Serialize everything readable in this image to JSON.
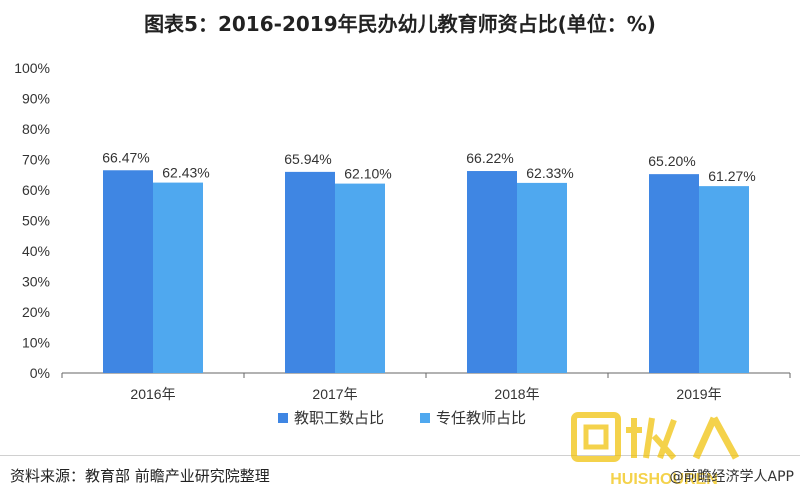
{
  "chart_data": {
    "type": "bar",
    "title": "图表5：2016-2019年民办幼儿教育师资占比(单位：%)",
    "categories": [
      "2016年",
      "2017年",
      "2018年",
      "2019年"
    ],
    "series": [
      {
        "name": "教职工数占比",
        "values": [
          66.47,
          65.94,
          66.22,
          65.2
        ],
        "labels": [
          "66.47%",
          "65.94%",
          "66.22%",
          "65.20%"
        ],
        "color": "#3f86e3"
      },
      {
        "name": "专任教师占比",
        "values": [
          62.43,
          62.1,
          62.33,
          61.27
        ],
        "labels": [
          "62.43%",
          "62.10%",
          "62.33%",
          "61.27%"
        ],
        "color": "#4fa8ef"
      }
    ],
    "ylim": [
      0,
      100
    ],
    "yticks": [
      "0%",
      "10%",
      "20%",
      "30%",
      "40%",
      "50%",
      "60%",
      "70%",
      "80%",
      "90%",
      "100%"
    ],
    "grid": false,
    "legend_position": "bottom"
  },
  "footer": {
    "source": "资料来源：教育部 前瞻产业研究院整理",
    "credit": "@前瞻经济学人APP",
    "logo_text": "回收人",
    "logo_subtext": "HUISHOUREN"
  },
  "colors": {
    "axis": "#666666",
    "text": "#333333",
    "logo": "#f0c000"
  }
}
